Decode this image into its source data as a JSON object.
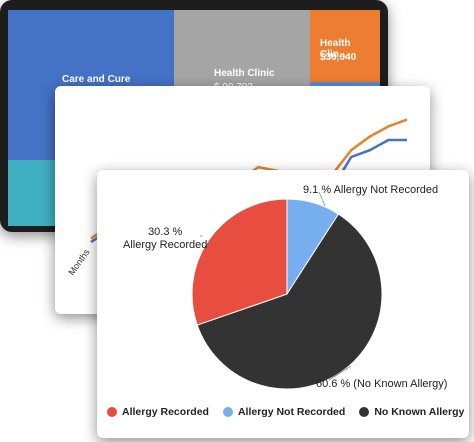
{
  "treemap": {
    "tiles": [
      {
        "name": "Care and Cure",
        "value_label": "",
        "color": "#4472c4"
      },
      {
        "name": "Health Clinic",
        "value_label": "$ 90,702",
        "color": "#a5a5a5"
      },
      {
        "name": "Health Clin...",
        "value_label": "$30,040",
        "color": "#ed7d31"
      },
      {
        "name": "",
        "value_label": "",
        "color": "#3fb0c1"
      },
      {
        "name": "",
        "value_label": "",
        "color": "#5b8fd8"
      }
    ]
  },
  "line_chart": {
    "x_axis_label": "Months",
    "series": [
      {
        "color": "#e8822e",
        "values": [
          22,
          30,
          38,
          33,
          40,
          52,
          49,
          52,
          57,
          64,
          62,
          58,
          58,
          60,
          74,
          82,
          88,
          92
        ]
      },
      {
        "color": "#4472c4",
        "values": [
          20,
          27,
          35,
          30,
          38,
          50,
          45,
          47,
          51,
          54,
          49,
          49,
          50,
          52,
          70,
          74,
          80,
          80
        ]
      }
    ]
  },
  "chart_data": {
    "type": "pie",
    "title": "",
    "slices": [
      {
        "name": "Allergy Recorded",
        "value": 30.3,
        "label": "30.3 %\nAllergy Recorded",
        "color": "#e84e3f"
      },
      {
        "name": "Allergy Not Recorded",
        "value": 9.1,
        "label": "9.1 % Allergy Not Recorded",
        "color": "#76aef0"
      },
      {
        "name": "No Known Allergy",
        "value": 60.6,
        "label": "60.6 % (No Known Allergy)",
        "color": "#333333"
      }
    ],
    "legend_position": "bottom"
  },
  "pie_labels": {
    "allergy_recorded_pct": "30.3 %",
    "allergy_recorded_name": "Allergy Recorded",
    "not_recorded": "9.1 % Allergy Not Recorded",
    "no_known": "60.6 % (No Known Allergy)"
  },
  "legend": [
    {
      "label": "Allergy Recorded",
      "color": "#e84e3f"
    },
    {
      "label": "Allergy Not Recorded",
      "color": "#76aef0"
    },
    {
      "label": "No Known Allergy",
      "color": "#333333"
    }
  ]
}
